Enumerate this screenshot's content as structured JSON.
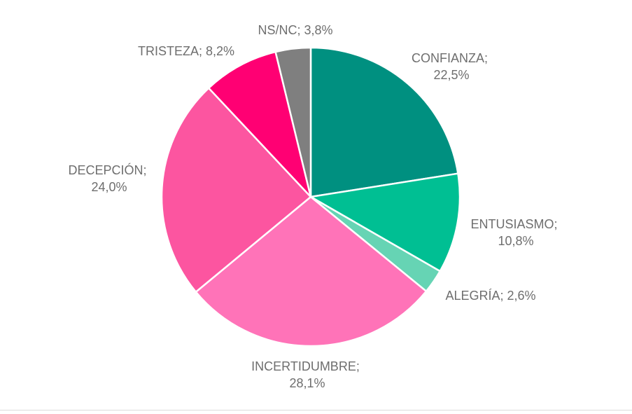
{
  "chart_data": {
    "type": "pie",
    "title": "",
    "start_angle_deg": 0,
    "direction": "clockwise",
    "slice_border_color": "#ffffff",
    "slices": [
      {
        "key": "confianza",
        "label_line1": "CONFIANZA;",
        "label_line2": "22,5%",
        "value": 22.5,
        "color": "#009080"
      },
      {
        "key": "entusiasmo",
        "label_line1": "ENTUSIASMO;",
        "label_line2": "10,8%",
        "value": 10.8,
        "color": "#00BF93"
      },
      {
        "key": "alegria",
        "label_line1": "ALEGRÍA; 2,6%",
        "label_line2": "",
        "value": 2.6,
        "color": "#66D4B4"
      },
      {
        "key": "incertidumbre",
        "label_line1": "INCERTIDUMBRE;",
        "label_line2": "28,1%",
        "value": 28.1,
        "color": "#FF73B8"
      },
      {
        "key": "decepcion",
        "label_line1": "DECEPCIÓN;",
        "label_line2": "24,0%",
        "value": 24.0,
        "color": "#FC55A0"
      },
      {
        "key": "tristeza",
        "label_line1": "TRISTEZA; 8,2%",
        "label_line2": "",
        "value": 8.2,
        "color": "#FF0073"
      },
      {
        "key": "nsnc",
        "label_line1": "NS/NC; 3,8%",
        "label_line2": "",
        "value": 3.8,
        "color": "#7F7F7F"
      }
    ]
  }
}
